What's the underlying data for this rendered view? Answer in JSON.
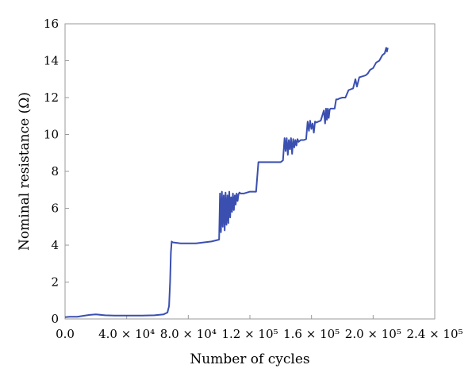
{
  "chart_data": {
    "type": "line",
    "title": "",
    "xlabel": "Number of cycles",
    "ylabel": "Nominal resistance (Ω)",
    "xlim": [
      0,
      240000
    ],
    "ylim": [
      0,
      16
    ],
    "grid": false,
    "x_ticks": [
      {
        "value": 0,
        "label": "0.0"
      },
      {
        "value": 40000,
        "label": "4.0 × 10⁴"
      },
      {
        "value": 80000,
        "label": "8.0 × 10⁴"
      },
      {
        "value": 120000,
        "label": "1.2 × 10⁵"
      },
      {
        "value": 160000,
        "label": "1.6 × 10⁵"
      },
      {
        "value": 200000,
        "label": "2.0 × 10⁵"
      },
      {
        "value": 240000,
        "label": "2.4 × 10⁵"
      }
    ],
    "y_ticks": [
      {
        "value": 0,
        "label": "0"
      },
      {
        "value": 2,
        "label": "2"
      },
      {
        "value": 4,
        "label": "4"
      },
      {
        "value": 6,
        "label": "6"
      },
      {
        "value": 8,
        "label": "8"
      },
      {
        "value": 10,
        "label": "10"
      },
      {
        "value": 12,
        "label": "12"
      },
      {
        "value": 14,
        "label": "14"
      },
      {
        "value": 16,
        "label": "16"
      }
    ],
    "series": [
      {
        "color": "#3a4fb0",
        "x": [
          0,
          3000,
          8000,
          12000,
          16000,
          20000,
          26000,
          32000,
          40000,
          50000,
          58000,
          64000,
          66500,
          67500,
          68200,
          68700,
          69200,
          70000,
          75000,
          85000,
          95000,
          100000,
          100600,
          101200,
          101800,
          102400,
          103000,
          103600,
          104200,
          104800,
          105400,
          106000,
          106600,
          107200,
          107800,
          108400,
          109000,
          109600,
          110200,
          110800,
          111400,
          112000,
          112600,
          113200,
          114000,
          116000,
          120000,
          124000,
          125500,
          126500,
          130000,
          135000,
          140000,
          141500,
          142500,
          143200,
          143900,
          144600,
          145300,
          146000,
          146700,
          147400,
          148100,
          148800,
          149500,
          150200,
          150900,
          151600,
          153000,
          155000,
          156500,
          157500,
          158300,
          159100,
          159900,
          160700,
          161500,
          162300,
          163100,
          164500,
          166000,
          168000,
          168800,
          169400,
          170000,
          170600,
          171200,
          171800,
          172400,
          173500,
          175000,
          176000,
          177000,
          178000,
          180000,
          182000,
          184000,
          185500,
          187000,
          188500,
          189500,
          191000,
          193000,
          195000,
          196500,
          198000,
          200000,
          202000,
          204000,
          206000,
          207500,
          208500,
          209000,
          209500
        ],
        "values": [
          0.1,
          0.12,
          0.12,
          0.17,
          0.22,
          0.25,
          0.2,
          0.18,
          0.18,
          0.18,
          0.2,
          0.25,
          0.35,
          0.7,
          2.0,
          3.6,
          4.2,
          4.15,
          4.1,
          4.1,
          4.2,
          4.3,
          6.8,
          4.7,
          6.9,
          5.0,
          6.7,
          4.8,
          6.85,
          5.1,
          6.7,
          5.2,
          6.9,
          5.5,
          6.6,
          5.8,
          6.8,
          5.9,
          6.7,
          6.2,
          6.8,
          6.4,
          6.75,
          6.85,
          6.8,
          6.8,
          6.9,
          6.9,
          8.5,
          8.5,
          8.5,
          8.5,
          8.5,
          8.6,
          9.8,
          9.1,
          9.8,
          8.9,
          9.7,
          9.2,
          9.8,
          8.95,
          9.75,
          9.3,
          9.7,
          9.4,
          9.75,
          9.6,
          9.7,
          9.7,
          9.75,
          10.7,
          10.2,
          10.75,
          10.3,
          10.6,
          10.1,
          10.7,
          10.65,
          10.7,
          10.75,
          11.3,
          10.6,
          11.4,
          10.8,
          11.4,
          10.9,
          11.35,
          11.4,
          11.4,
          11.4,
          11.9,
          11.9,
          11.95,
          12.0,
          12.0,
          12.4,
          12.45,
          12.5,
          13.0,
          12.6,
          13.1,
          13.15,
          13.2,
          13.3,
          13.5,
          13.6,
          13.9,
          14.0,
          14.3,
          14.4,
          14.7,
          14.5,
          14.7
        ]
      }
    ]
  }
}
